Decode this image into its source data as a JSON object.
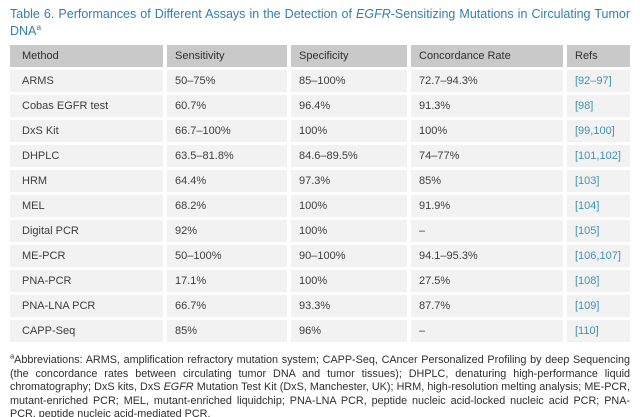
{
  "title": {
    "text_before_italic": "Table 6. Performances of Different Assays in the Detection of ",
    "italic_text": "EGFR",
    "text_after_italic": "-Sensitizing Mutations in Circulating Tumor DNA",
    "superscript": "a"
  },
  "table": {
    "columns": [
      "Method",
      "Sensitivity",
      "Specificity",
      "Concordance Rate",
      "Refs"
    ],
    "rows": [
      {
        "method": "ARMS",
        "sensitivity": "50–75%",
        "specificity": "85–100%",
        "concordance": "72.7–94.3%",
        "refs": "[92–97]"
      },
      {
        "method": "Cobas EGFR test",
        "sensitivity": "60.7%",
        "specificity": "96.4%",
        "concordance": "91.3%",
        "refs": "[98]"
      },
      {
        "method": "DxS Kit",
        "sensitivity": "66.7–100%",
        "specificity": "100%",
        "concordance": "100%",
        "refs": "[99,100]"
      },
      {
        "method": "DHPLC",
        "sensitivity": "63.5–81.8%",
        "specificity": "84.6–89.5%",
        "concordance": "74–77%",
        "refs": "[101,102]"
      },
      {
        "method": "HRM",
        "sensitivity": "64.4%",
        "specificity": "97.3%",
        "concordance": "85%",
        "refs": "[103]"
      },
      {
        "method": "MEL",
        "sensitivity": "68.2%",
        "specificity": "100%",
        "concordance": "91.9%",
        "refs": "[104]"
      },
      {
        "method": "Digital PCR",
        "sensitivity": "92%",
        "specificity": "100%",
        "concordance": "–",
        "refs": "[105]"
      },
      {
        "method": "ME-PCR",
        "sensitivity": "50–100%",
        "specificity": "90–100%",
        "concordance": "94.1–95.3%",
        "refs": "[106,107]"
      },
      {
        "method": "PNA-PCR",
        "sensitivity": "17.1%",
        "specificity": "100%",
        "concordance": "27.5%",
        "refs": "[108]"
      },
      {
        "method": "PNA-LNA PCR",
        "sensitivity": "66.7%",
        "specificity": "93.3%",
        "concordance": "87.7%",
        "refs": "[109]"
      },
      {
        "method": "CAPP-Seq",
        "sensitivity": "85%",
        "specificity": "96%",
        "concordance": "–",
        "refs": "[110]"
      }
    ]
  },
  "footnote": {
    "superscript": "a",
    "part1": "Abbreviations: ARMS, amplification refractory mutation system; CAPP-Seq, CAncer Personalized Profiling by deep Sequencing (the concordance rates between circulating tumor DNA and tumor tissues); DHPLC, denaturing high-performance liquid chromatography; DxS kits, DxS ",
    "italic_text": "EGFR",
    "part2": " Mutation Test Kit (DxS, Manchester, UK); HRM, high-resolution melting analysis; ME-PCR, mutant-enriched PCR; MEL, mutant-enriched liquidchip; PNA-LNA PCR, peptide nucleic acid-locked nucleic acid PCR; PNA-PCR, peptide nucleic acid-mediated PCR."
  },
  "colors": {
    "title_text": "#2f81ad",
    "ref_link": "#3e93b4",
    "header_bg": "#c9c9c9",
    "row_bg": "#f2f2f2"
  }
}
